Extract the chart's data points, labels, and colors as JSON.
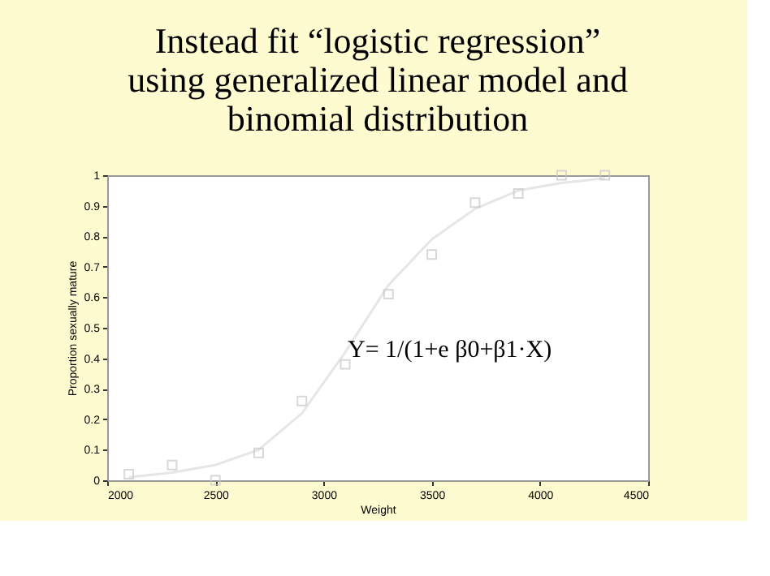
{
  "chart_data": {
    "type": "scatter",
    "title": "Instead fit “logistic regression” using generalized linear model and binomial distribution",
    "xlabel": "Weight",
    "ylabel": "Proportion sexually mature",
    "series": [
      {
        "type": "line",
        "color": "#e6e6e6",
        "marker": "none",
        "line_style": "solid",
        "x": [
          2100,
          2300,
          2500,
          2700,
          2900,
          3100,
          3300,
          3500,
          3700,
          3900,
          4100,
          4300
        ],
        "values": [
          0.01,
          0.025,
          0.05,
          0.1,
          0.22,
          0.42,
          0.64,
          0.79,
          0.89,
          0.95,
          0.975,
          0.99
        ]
      },
      {
        "color": "#c8c8c8",
        "marker": "square",
        "x": [
          2100,
          2300,
          2500,
          2700,
          2900,
          3100,
          3300,
          3500,
          3700,
          3900,
          4100,
          4300
        ],
        "values": [
          0.02,
          0.05,
          0.0,
          0.09,
          0.26,
          0.38,
          0.61,
          0.74,
          0.91,
          0.94,
          1.0,
          1.0
        ]
      }
    ],
    "xlim": [
      2000,
      4500
    ],
    "xticks": [
      2000,
      2500,
      3000,
      3500,
      4000,
      4500
    ],
    "ylim": [
      0,
      1
    ],
    "yticks": [
      0,
      0.1,
      0.2,
      0.3,
      0.4,
      0.5,
      0.6,
      0.7,
      0.8,
      0.9,
      1
    ],
    "grid": false,
    "annotations": [
      "Y= 1/(1+e β0+β1·X)"
    ]
  }
}
